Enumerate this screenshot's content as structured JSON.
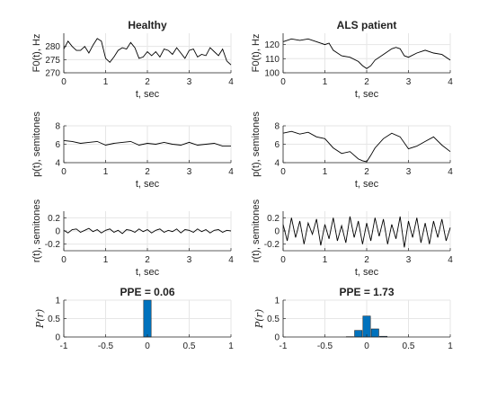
{
  "chart_data": [
    {
      "id": "f0-healthy",
      "type": "line",
      "title": "Healthy",
      "xlabel": "t, sec",
      "ylabel": "F0(t), Hz",
      "xlim": [
        0,
        4
      ],
      "ylim": [
        270,
        285
      ],
      "xticks": [
        "0",
        "1",
        "2",
        "3",
        "4"
      ],
      "yticks": [
        "270",
        "275",
        "280"
      ],
      "grid": true,
      "x": [
        0,
        0.1,
        0.2,
        0.3,
        0.4,
        0.5,
        0.6,
        0.7,
        0.8,
        0.9,
        1.0,
        1.1,
        1.2,
        1.3,
        1.4,
        1.5,
        1.6,
        1.7,
        1.8,
        1.9,
        2.0,
        2.1,
        2.2,
        2.3,
        2.4,
        2.5,
        2.6,
        2.7,
        2.8,
        2.9,
        3.0,
        3.1,
        3.2,
        3.3,
        3.4,
        3.5,
        3.6,
        3.7,
        3.8,
        3.9,
        4.0
      ],
      "y": [
        279,
        282,
        280,
        278.5,
        278.5,
        280,
        277.5,
        280.5,
        283,
        282,
        275.5,
        274,
        276,
        278.5,
        279.5,
        279,
        281.5,
        279.5,
        275.5,
        276,
        278,
        276.5,
        278,
        276,
        279,
        278.5,
        277,
        279.5,
        277.5,
        275.5,
        278.5,
        279,
        276,
        277,
        276.5,
        279.5,
        278,
        276.5,
        279,
        274.5,
        273
      ]
    },
    {
      "id": "f0-als",
      "type": "line",
      "title": "ALS patient",
      "xlabel": "t, sec",
      "ylabel": "F0(t), Hz",
      "xlim": [
        0,
        4
      ],
      "ylim": [
        100,
        128
      ],
      "xticks": [
        "0",
        "1",
        "2",
        "3",
        "4"
      ],
      "yticks": [
        "100",
        "110",
        "120"
      ],
      "grid": true,
      "x": [
        0,
        0.2,
        0.4,
        0.6,
        0.8,
        1.0,
        1.1,
        1.2,
        1.4,
        1.6,
        1.8,
        1.9,
        2.0,
        2.1,
        2.2,
        2.4,
        2.6,
        2.7,
        2.8,
        2.9,
        3.0,
        3.2,
        3.4,
        3.6,
        3.8,
        4.0
      ],
      "y": [
        122,
        124,
        123,
        124,
        122,
        120,
        121,
        116,
        112,
        111,
        108,
        105,
        103,
        105,
        109,
        113,
        117,
        118,
        117,
        112,
        111,
        114,
        116,
        114,
        113,
        109
      ]
    },
    {
      "id": "p-healthy",
      "type": "line",
      "xlabel": "t, sec",
      "ylabel": "p(t), semitones",
      "xlim": [
        0,
        4
      ],
      "ylim": [
        4,
        8
      ],
      "xticks": [
        "0",
        "1",
        "2",
        "3",
        "4"
      ],
      "yticks": [
        "4",
        "6",
        "8"
      ],
      "grid": true,
      "x": [
        0,
        0.2,
        0.4,
        0.6,
        0.8,
        1.0,
        1.2,
        1.4,
        1.6,
        1.8,
        2.0,
        2.2,
        2.4,
        2.6,
        2.8,
        3.0,
        3.2,
        3.4,
        3.6,
        3.8,
        4.0
      ],
      "y": [
        6.4,
        6.3,
        6.1,
        6.2,
        6.3,
        5.9,
        6.1,
        6.2,
        6.3,
        5.9,
        6.1,
        6.0,
        6.2,
        6.0,
        5.9,
        6.2,
        5.9,
        6.0,
        6.1,
        5.8,
        5.8
      ]
    },
    {
      "id": "p-als",
      "type": "line",
      "xlabel": "t, sec",
      "ylabel": "p(t), semitones",
      "xlim": [
        0,
        4
      ],
      "ylim": [
        4,
        8
      ],
      "xticks": [
        "0",
        "1",
        "2",
        "3",
        "4"
      ],
      "yticks": [
        "4",
        "6",
        "8"
      ],
      "grid": true,
      "x": [
        0,
        0.2,
        0.4,
        0.6,
        0.8,
        1.0,
        1.2,
        1.4,
        1.6,
        1.8,
        1.9,
        2.0,
        2.1,
        2.2,
        2.4,
        2.6,
        2.8,
        3.0,
        3.2,
        3.4,
        3.6,
        3.8,
        4.0
      ],
      "y": [
        7.2,
        7.4,
        7.1,
        7.3,
        6.8,
        6.6,
        5.6,
        5.0,
        5.2,
        4.4,
        4.2,
        4.1,
        4.8,
        5.6,
        6.6,
        7.2,
        6.8,
        5.5,
        5.8,
        6.3,
        6.8,
        5.9,
        5.2
      ]
    },
    {
      "id": "r-healthy",
      "type": "line",
      "xlabel": "t, sec",
      "ylabel": "r(t), semitones",
      "xlim": [
        0,
        4
      ],
      "ylim": [
        -0.3,
        0.3
      ],
      "xticks": [
        "0",
        "1",
        "2",
        "3",
        "4"
      ],
      "yticks": [
        "-0.2",
        "0",
        "0.2"
      ],
      "grid": true,
      "x": [
        0,
        0.1,
        0.2,
        0.3,
        0.4,
        0.5,
        0.6,
        0.7,
        0.8,
        0.9,
        1.0,
        1.1,
        1.2,
        1.3,
        1.4,
        1.5,
        1.6,
        1.7,
        1.8,
        1.9,
        2.0,
        2.1,
        2.2,
        2.3,
        2.4,
        2.5,
        2.6,
        2.7,
        2.8,
        2.9,
        3.0,
        3.1,
        3.2,
        3.3,
        3.4,
        3.5,
        3.6,
        3.7,
        3.8,
        3.9,
        4.0
      ],
      "y": [
        0.01,
        -0.03,
        0.02,
        0.03,
        -0.02,
        0.01,
        0.04,
        -0.01,
        0.02,
        -0.03,
        0.01,
        0.03,
        -0.02,
        0.01,
        -0.04,
        0.02,
        0.01,
        -0.02,
        0.03,
        -0.01,
        0.02,
        -0.03,
        0.01,
        0.03,
        -0.02,
        0.01,
        -0.01,
        0.03,
        -0.03,
        0.02,
        0.01,
        -0.02,
        0.03,
        -0.01,
        0.02,
        -0.03,
        0.01,
        0.02,
        -0.02,
        0.01,
        0.0
      ]
    },
    {
      "id": "r-als",
      "type": "line",
      "xlabel": "t, sec",
      "ylabel": "r(t), semitones",
      "xlim": [
        0,
        4
      ],
      "ylim": [
        -0.3,
        0.3
      ],
      "xticks": [
        "0",
        "1",
        "2",
        "3",
        "4"
      ],
      "yticks": [
        "-0.2",
        "0",
        "0.2"
      ],
      "grid": true,
      "x": [
        0,
        0.1,
        0.2,
        0.3,
        0.4,
        0.5,
        0.6,
        0.7,
        0.8,
        0.9,
        1.0,
        1.1,
        1.2,
        1.3,
        1.4,
        1.5,
        1.6,
        1.7,
        1.8,
        1.9,
        2.0,
        2.1,
        2.2,
        2.3,
        2.4,
        2.5,
        2.6,
        2.7,
        2.8,
        2.9,
        3.0,
        3.1,
        3.2,
        3.3,
        3.4,
        3.5,
        3.6,
        3.7,
        3.8,
        3.9,
        4.0
      ],
      "y": [
        0.1,
        -0.15,
        0.2,
        -0.1,
        0.15,
        -0.2,
        0.12,
        -0.05,
        0.18,
        -0.22,
        0.1,
        -0.12,
        0.2,
        -0.15,
        0.08,
        -0.18,
        0.22,
        -0.1,
        0.15,
        -0.2,
        0.12,
        -0.15,
        0.2,
        -0.08,
        0.18,
        -0.2,
        0.1,
        -0.12,
        0.22,
        -0.25,
        0.15,
        -0.1,
        0.2,
        -0.18,
        0.12,
        -0.2,
        0.15,
        -0.1,
        0.18,
        -0.15,
        0.05
      ]
    },
    {
      "id": "pr-healthy",
      "type": "bar",
      "title": "PPE = 0.06",
      "ylabel": "P(r)",
      "xlim": [
        -1,
        1
      ],
      "ylim": [
        0,
        1
      ],
      "xticks": [
        "-1",
        "-0.5",
        "0",
        "0.5",
        "1"
      ],
      "yticks": [
        "0",
        "0.5",
        "1"
      ],
      "grid": true,
      "categories": [
        0
      ],
      "values": [
        1.0
      ],
      "bar_color": "#0072BD"
    },
    {
      "id": "pr-als",
      "type": "bar",
      "title": "PPE = 1.73",
      "ylabel": "P(r)",
      "xlim": [
        -1,
        1
      ],
      "ylim": [
        0,
        1
      ],
      "xticks": [
        "-1",
        "-0.5",
        "0",
        "0.5",
        "1"
      ],
      "yticks": [
        "0",
        "0.5",
        "1"
      ],
      "grid": true,
      "categories": [
        -0.2,
        -0.1,
        0,
        0.1,
        0.2
      ],
      "values": [
        0.01,
        0.18,
        0.57,
        0.22,
        0.02
      ],
      "bar_color": "#0072BD"
    }
  ]
}
